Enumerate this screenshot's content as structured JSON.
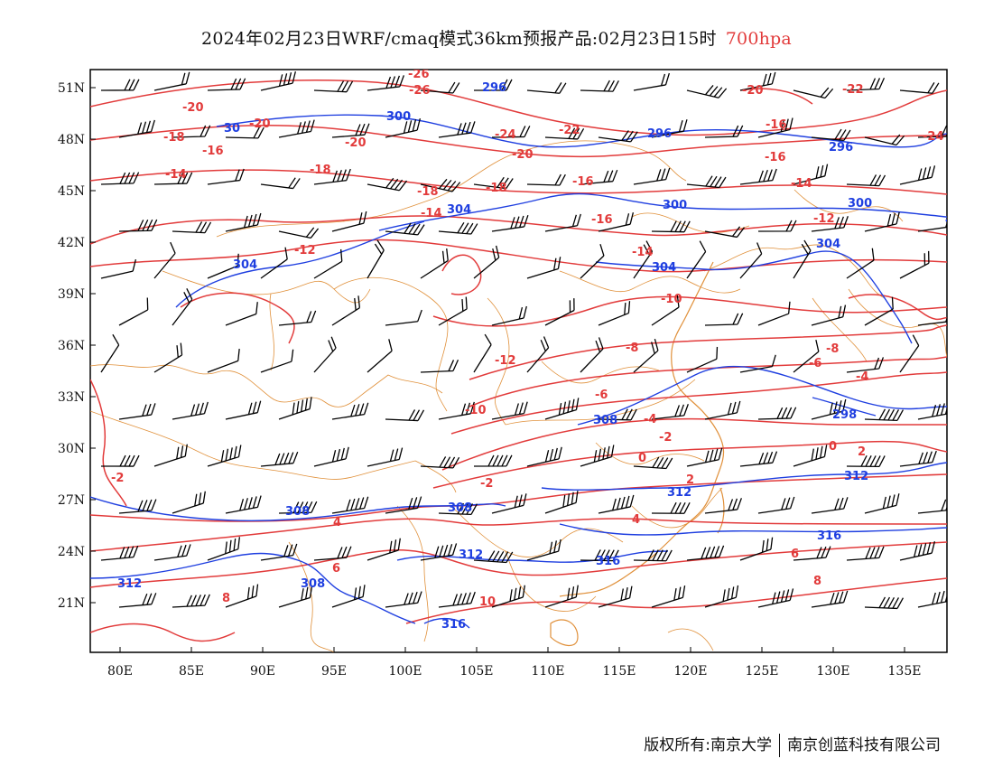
{
  "title": {
    "main": "2024年02月23日WRF/cmaq模式36km预报产品:02月23日15时",
    "level": "700hpa"
  },
  "colors": {
    "temperature": "#e23b3b",
    "height": "#1f3fe0",
    "boundary": "#e0903a",
    "wind": "#000000"
  },
  "axes": {
    "y_ticks": [
      "51N",
      "48N",
      "45N",
      "42N",
      "39N",
      "36N",
      "33N",
      "30N",
      "27N",
      "24N",
      "21N"
    ],
    "x_ticks": [
      "80E",
      "85E",
      "90E",
      "95E",
      "100E",
      "105E",
      "110E",
      "115E",
      "120E",
      "125E",
      "130E",
      "135E"
    ]
  },
  "temperature_labels": [
    "-26",
    "-26",
    "-20",
    "-20",
    "-18",
    "-16",
    "-14",
    "-20",
    "-18",
    "-18",
    "-16",
    "-14",
    "-12",
    "-24",
    "-22",
    "-20",
    "-18",
    "-16",
    "-16",
    "-16",
    "-14",
    "-14",
    "-12",
    "-12",
    "-10",
    "-10",
    "-8",
    "-8",
    "-6",
    "-6",
    "-4",
    "-4",
    "-2",
    "-2",
    "0",
    "0",
    "2",
    "2",
    "4",
    "4",
    "6",
    "6",
    "8",
    "8",
    "10",
    "-2",
    "-20",
    "-24",
    "-22"
  ],
  "height_labels": [
    "296",
    "300",
    "296",
    "296",
    "304",
    "300",
    "300",
    "304",
    "304",
    "304",
    "308",
    "308",
    "308",
    "312",
    "312",
    "312",
    "316",
    "316",
    "316",
    "312",
    "308",
    "298",
    "30"
  ],
  "footer": {
    "left": "版权所有:南京大学",
    "right": "南京创蓝科技有限公司"
  }
}
